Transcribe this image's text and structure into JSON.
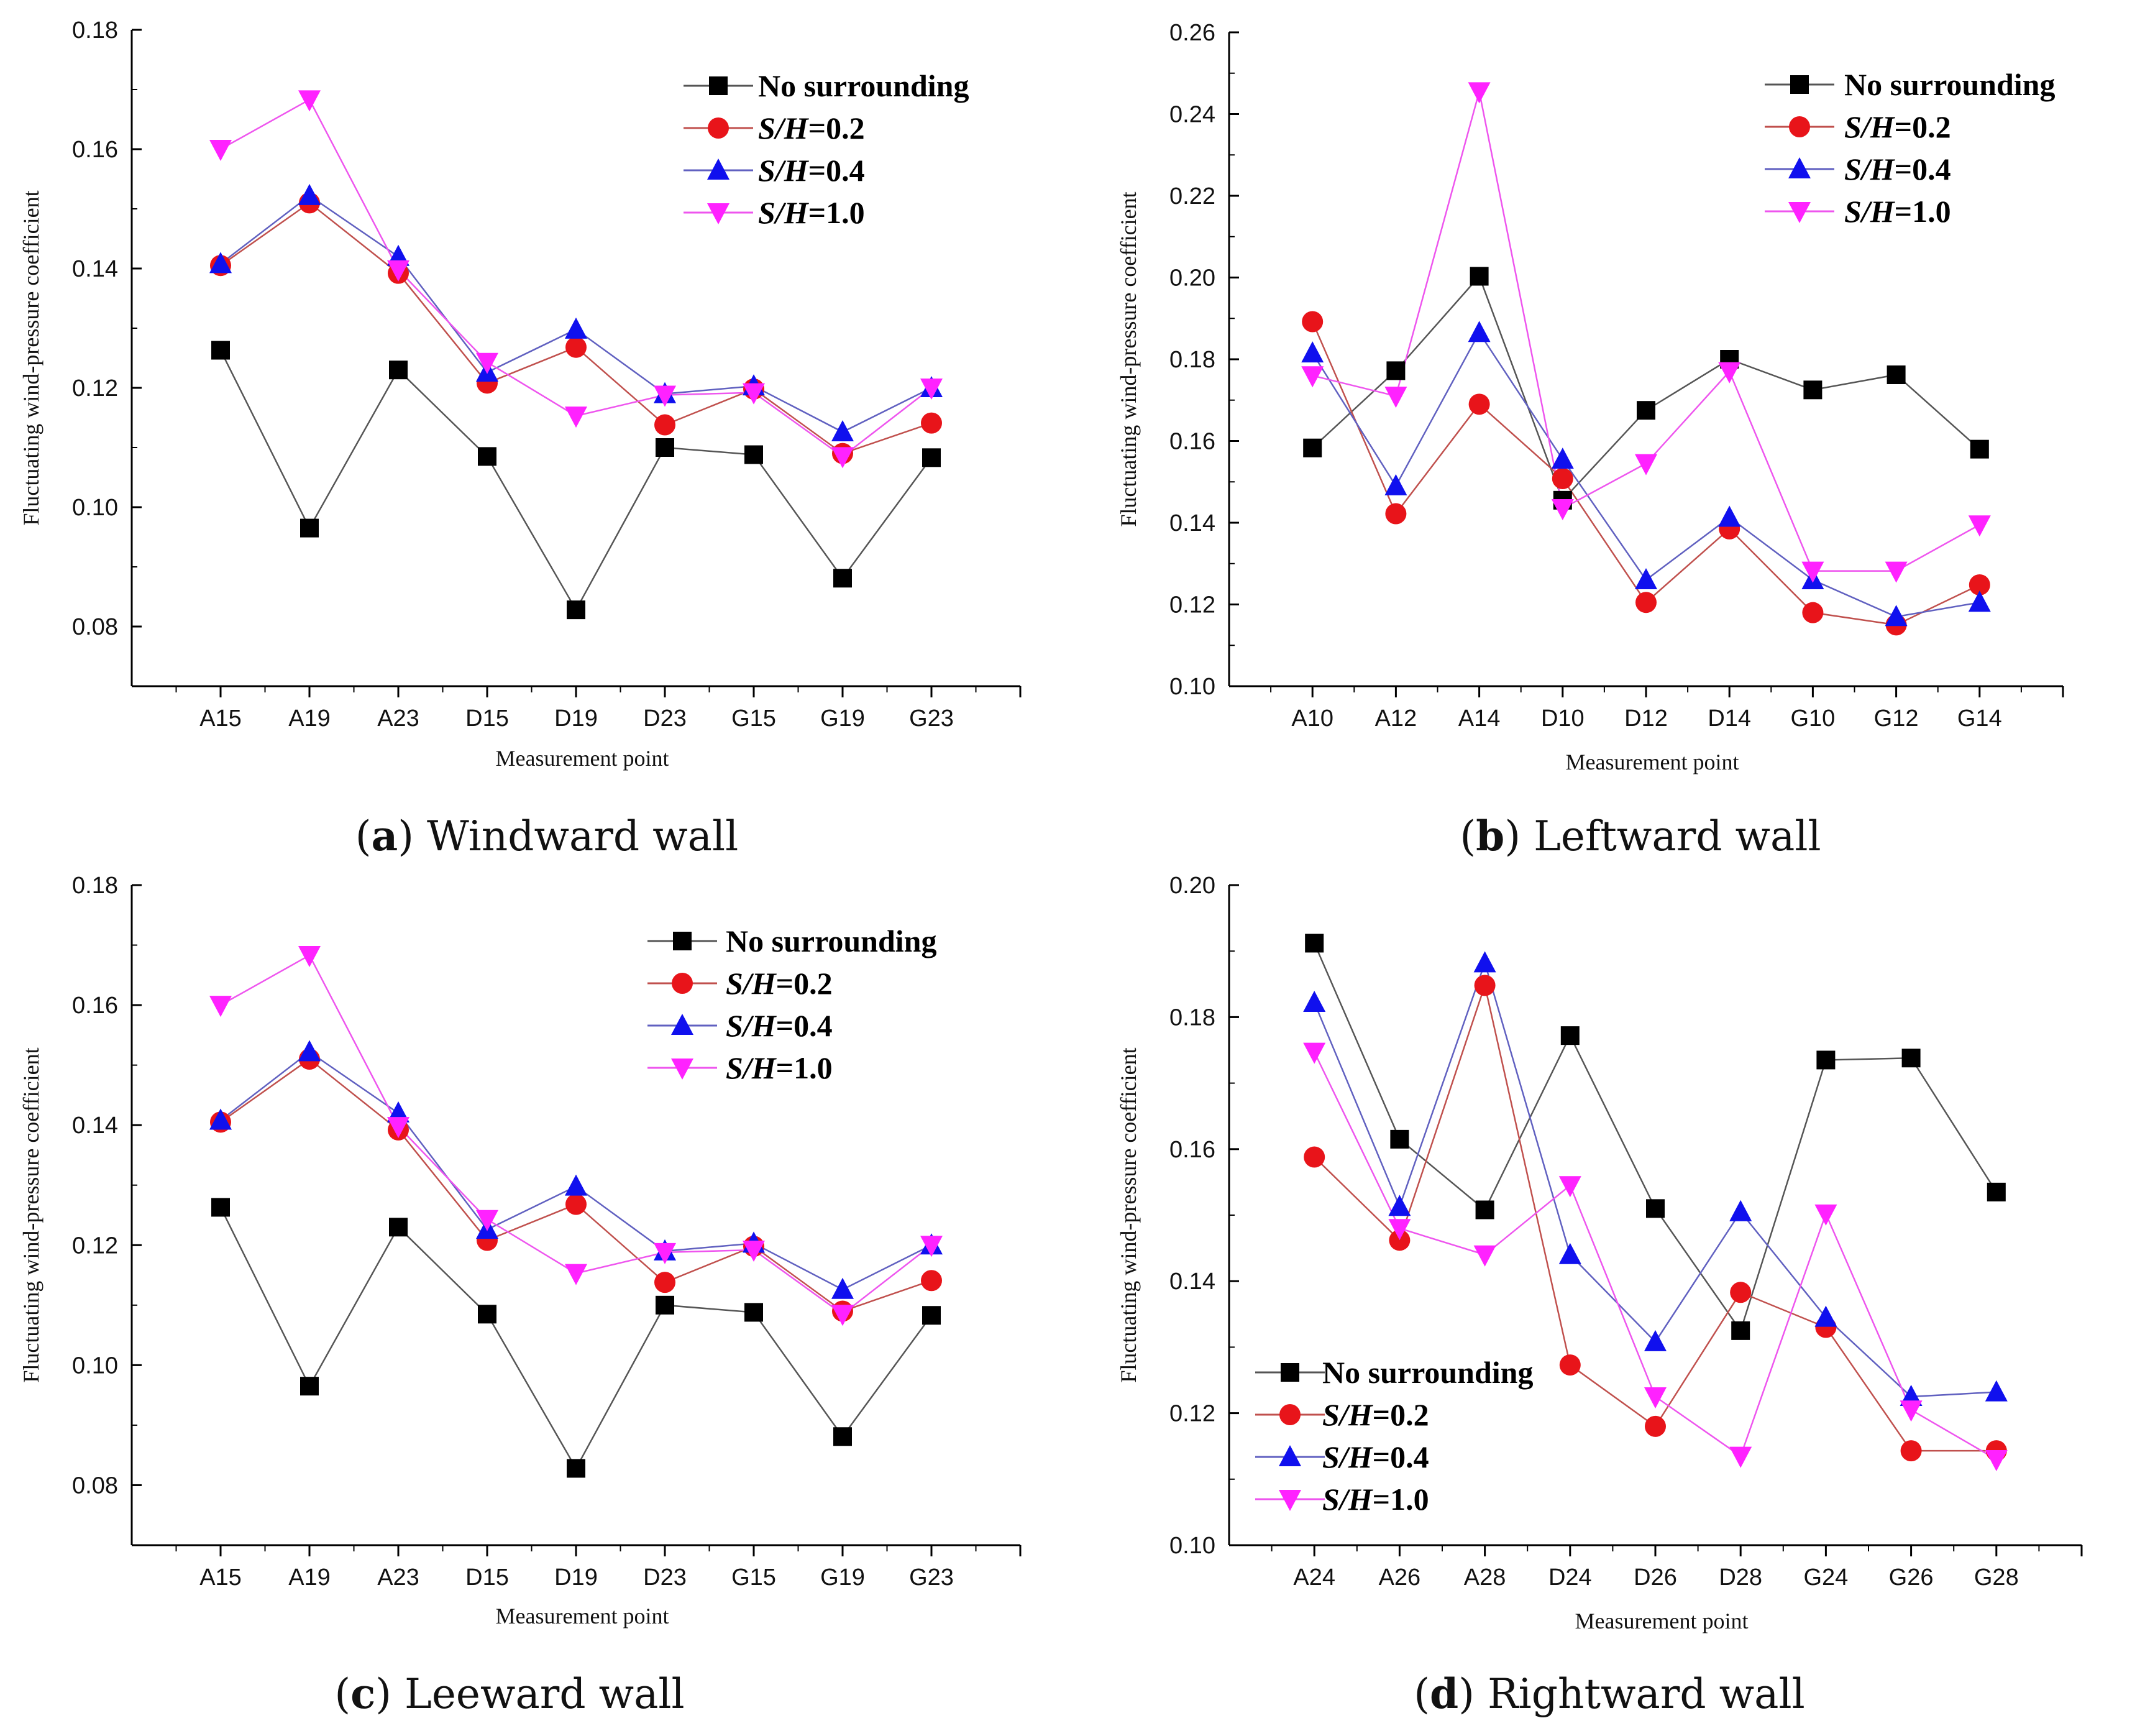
{
  "figure": {
    "panels": [
      {
        "letter": "a",
        "caption": "Windward wall"
      },
      {
        "letter": "b",
        "caption": "Leftward wall"
      },
      {
        "letter": "c",
        "caption": "Leeward wall"
      },
      {
        "letter": "d",
        "caption": "Rightward wall"
      }
    ]
  },
  "series_styles": [
    {
      "name": "No surrounding",
      "marker": "square",
      "marker_color": "#000000",
      "line_color": "#555555"
    },
    {
      "name": "S/H=0.2",
      "marker": "circle",
      "marker_color": "#e8141a",
      "line_color": "#c0504d"
    },
    {
      "name": "S/H=0.4",
      "marker": "triangle-up",
      "marker_color": "#1010ee",
      "line_color": "#6060c0"
    },
    {
      "name": "S/H=1.0",
      "marker": "triangle-down",
      "marker_color": "#ff22ff",
      "line_color": "#ee55ee"
    }
  ],
  "chart_data": [
    {
      "type": "line",
      "title": "Windward wall",
      "xlabel": "Measurement point",
      "ylabel": "Fluctuating wind-pressure coefficient",
      "categories": [
        "A15",
        "A19",
        "A23",
        "D15",
        "D19",
        "D23",
        "G15",
        "G19",
        "G23"
      ],
      "ylim": [
        0.07,
        0.18
      ],
      "yticks": [
        "0.08",
        "0.10",
        "0.12",
        "0.14",
        "0.16",
        "0.18"
      ],
      "legend_position": "top-right",
      "series": [
        {
          "name": "No surrounding",
          "values": [
            0.1263,
            0.0965,
            0.123,
            0.1085,
            0.0828,
            0.11,
            0.1088,
            0.0881,
            0.1083
          ]
        },
        {
          "name": "S/H=0.2",
          "values": [
            0.1405,
            0.151,
            0.1392,
            0.1208,
            0.1268,
            0.1138,
            0.1198,
            0.109,
            0.1141
          ]
        },
        {
          "name": "S/H=0.4",
          "values": [
            0.1408,
            0.1522,
            0.142,
            0.1226,
            0.1298,
            0.119,
            0.1203,
            0.1126,
            0.12
          ]
        },
        {
          "name": "S/H=1.0",
          "values": [
            0.16,
            0.1683,
            0.1398,
            0.1243,
            0.1153,
            0.1188,
            0.1192,
            0.1085,
            0.12
          ]
        }
      ]
    },
    {
      "type": "line",
      "title": "Leftward wall",
      "xlabel": "Measurement point",
      "ylabel": "Fluctuating wind-pressure coefficient",
      "categories": [
        "A10",
        "A12",
        "A14",
        "D10",
        "D12",
        "D14",
        "G10",
        "G12",
        "G14"
      ],
      "ylim": [
        0.1,
        0.26
      ],
      "yticks": [
        "0.10",
        "0.12",
        "0.14",
        "0.16",
        "0.18",
        "0.20",
        "0.22",
        "0.24",
        "0.26"
      ],
      "legend_position": "top-right",
      "series": [
        {
          "name": "No surrounding",
          "values": [
            0.1583,
            0.1772,
            0.2003,
            0.1455,
            0.1675,
            0.18,
            0.1725,
            0.1762,
            0.158
          ]
        },
        {
          "name": "S/H=0.2",
          "values": [
            0.1892,
            0.1422,
            0.169,
            0.1508,
            0.1205,
            0.1385,
            0.118,
            0.115,
            0.1248
          ]
        },
        {
          "name": "S/H=0.4",
          "values": [
            0.1815,
            0.149,
            0.1865,
            0.1555,
            0.126,
            0.1413,
            0.126,
            0.117,
            0.1205
          ]
        },
        {
          "name": "S/H=1.0",
          "values": [
            0.176,
            0.171,
            0.2455,
            0.1435,
            0.1545,
            0.177,
            0.1282,
            0.1282,
            0.1395
          ]
        }
      ]
    },
    {
      "type": "line",
      "title": "Leeward wall",
      "xlabel": "Measurement point",
      "ylabel": "Fluctuating wind-pressure coefficient",
      "categories": [
        "A15",
        "A19",
        "A23",
        "D15",
        "D19",
        "D23",
        "G15",
        "G19",
        "G23"
      ],
      "ylim": [
        0.07,
        0.18
      ],
      "yticks": [
        "0.08",
        "0.10",
        "0.12",
        "0.14",
        "0.16",
        "0.18"
      ],
      "legend_position": "top-right",
      "series": [
        {
          "name": "No surrounding",
          "values": [
            0.1263,
            0.0965,
            0.123,
            0.1085,
            0.0828,
            0.11,
            0.1088,
            0.0881,
            0.1083
          ]
        },
        {
          "name": "S/H=0.2",
          "values": [
            0.1405,
            0.151,
            0.1392,
            0.1208,
            0.1268,
            0.1138,
            0.1198,
            0.109,
            0.1141
          ]
        },
        {
          "name": "S/H=0.4",
          "values": [
            0.1408,
            0.1522,
            0.142,
            0.1226,
            0.1298,
            0.119,
            0.1203,
            0.1126,
            0.12
          ]
        },
        {
          "name": "S/H=1.0",
          "values": [
            0.16,
            0.1683,
            0.1398,
            0.1243,
            0.1153,
            0.1188,
            0.1192,
            0.1085,
            0.12
          ]
        }
      ]
    },
    {
      "type": "line",
      "title": "Rightward wall",
      "xlabel": "Measurement point",
      "ylabel": "Fluctuating wind-pressure coefficient",
      "categories": [
        "A24",
        "A26",
        "A28",
        "D24",
        "D26",
        "D28",
        "G24",
        "G26",
        "G28"
      ],
      "ylim": [
        0.1,
        0.2
      ],
      "yticks": [
        "0.10",
        "0.12",
        "0.14",
        "0.16",
        "0.18",
        "0.20"
      ],
      "legend_position": "bottom-left",
      "series": [
        {
          "name": "No surrounding",
          "values": [
            0.1912,
            0.1615,
            0.1508,
            0.1772,
            0.151,
            0.1325,
            0.1735,
            0.1738,
            0.1535
          ]
        },
        {
          "name": "S/H=0.2",
          "values": [
            0.1588,
            0.1462,
            0.1848,
            0.1273,
            0.118,
            0.1383,
            0.133,
            0.1143,
            0.1143
          ]
        },
        {
          "name": "S/H=0.4",
          "values": [
            0.1822,
            0.1513,
            0.1882,
            0.144,
            0.1308,
            0.1505,
            0.1345,
            0.1225,
            0.1232
          ]
        },
        {
          "name": "S/H=1.0",
          "values": [
            0.1747,
            0.148,
            0.144,
            0.1545,
            0.1225,
            0.1135,
            0.1502,
            0.1205,
            0.113
          ]
        }
      ]
    }
  ]
}
